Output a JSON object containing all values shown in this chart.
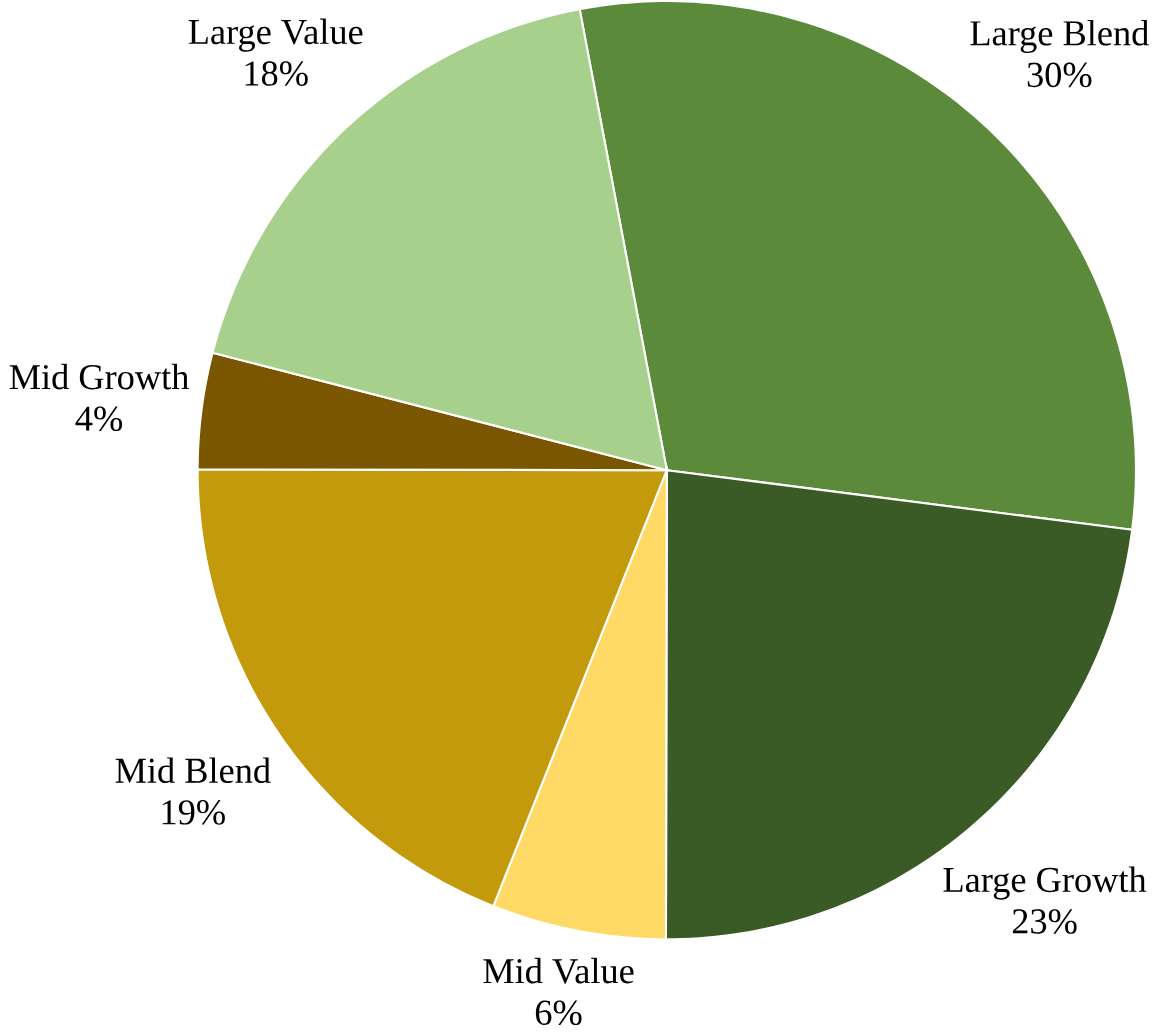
{
  "chart_data": {
    "type": "pie",
    "categories": [
      "Large Blend",
      "Large Growth",
      "Mid Value",
      "Mid Blend",
      "Mid Growth",
      "Large Value"
    ],
    "values": [
      30,
      23,
      6,
      19,
      4,
      18
    ],
    "value_labels": [
      "30%",
      "23%",
      "6%",
      "19%",
      "4%",
      "18%"
    ],
    "colors": [
      "#5b8b3a",
      "#3a5a26",
      "#ffd966",
      "#c39a0b",
      "#7a5600",
      "#a8d08d"
    ]
  }
}
